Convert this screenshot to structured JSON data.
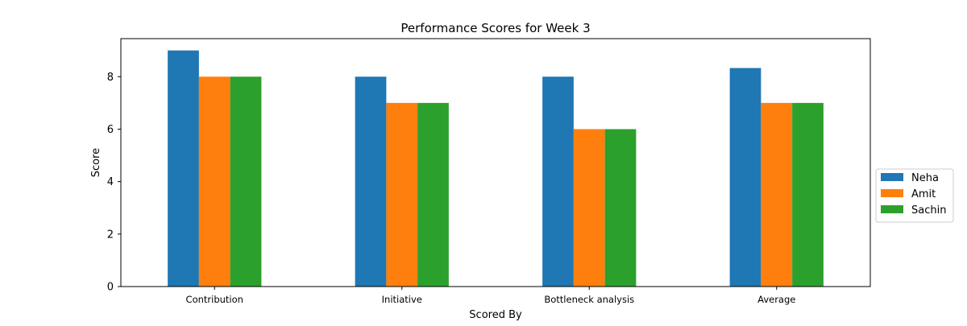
{
  "chart_data": {
    "type": "bar",
    "title": "Performance Scores for Week 3",
    "xlabel": "Scored By",
    "ylabel": "Score",
    "categories": [
      "Contribution",
      "Initiative",
      "Bottleneck analysis",
      "Average"
    ],
    "series": [
      {
        "name": "Neha",
        "values": [
          9,
          8,
          8,
          8.33
        ],
        "color": "#1f77b4"
      },
      {
        "name": "Amit",
        "values": [
          8,
          7,
          6,
          7
        ],
        "color": "#ff7f0e"
      },
      {
        "name": "Sachin",
        "values": [
          8,
          7,
          6,
          7
        ],
        "color": "#2ca02c"
      }
    ],
    "ylim": [
      0,
      9.45
    ],
    "yticks": [
      "0",
      "2",
      "4",
      "6",
      "8"
    ],
    "grid": false,
    "legend_position": "right"
  }
}
